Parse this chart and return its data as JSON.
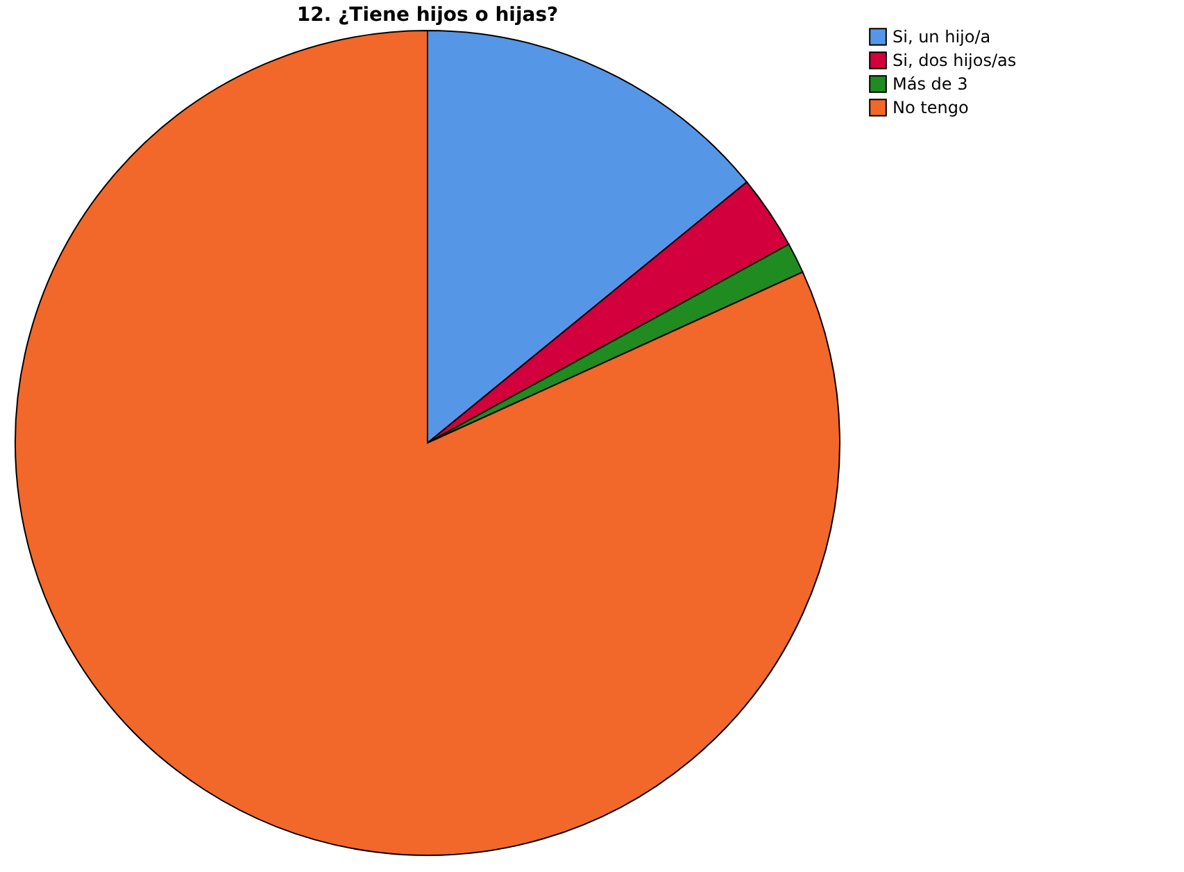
{
  "chart_data": {
    "type": "pie",
    "title": "12. ¿Tiene hijos o hijas?",
    "categories": [
      "Si, un hijo/a",
      "Si, dos hijos/as",
      "Más de 3",
      "No tengo"
    ],
    "values": [
      14.1,
      2.9,
      1.2,
      81.8
    ],
    "colors": [
      "#5596e6",
      "#d2003c",
      "#208b20",
      "#f2672a"
    ],
    "legend": "top right"
  }
}
